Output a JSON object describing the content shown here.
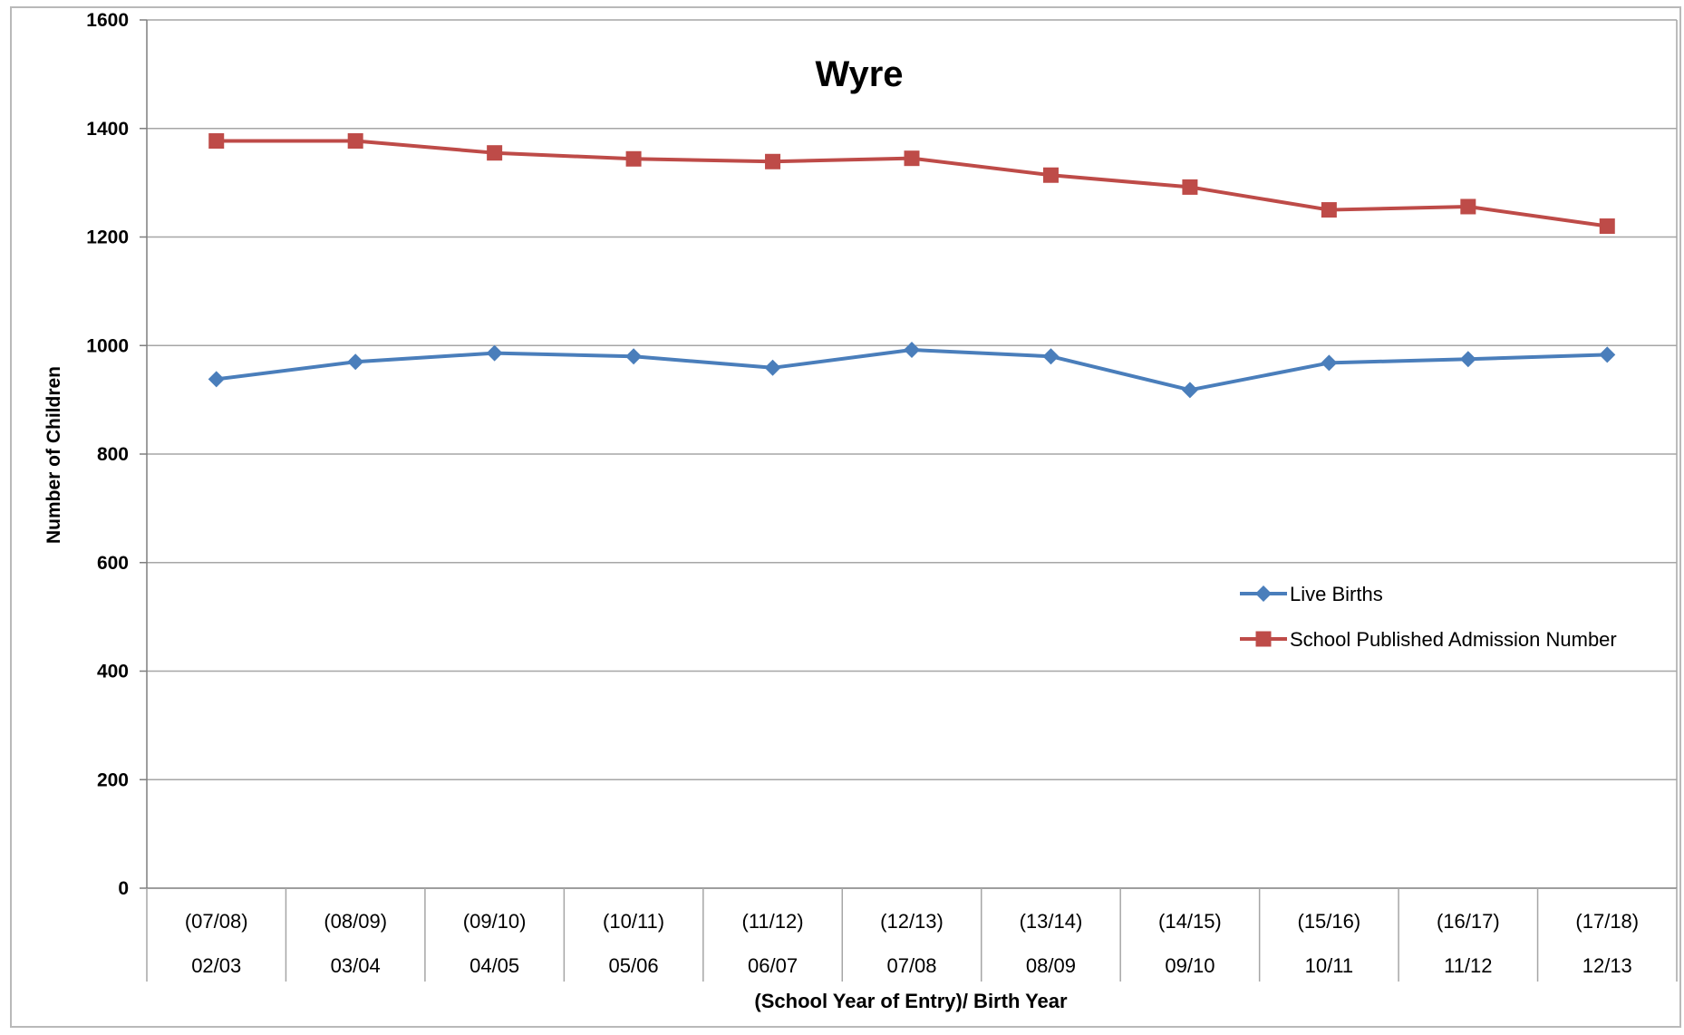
{
  "chart_data": {
    "type": "line",
    "title": "Wyre",
    "xlabel": "(School Year of Entry)/ Birth Year",
    "ylabel": "Number of Children",
    "ylim": [
      0,
      1600
    ],
    "yticks": [
      0,
      200,
      400,
      600,
      800,
      1000,
      1200,
      1400,
      1600
    ],
    "categories": [
      {
        "top": "(07/08)",
        "bottom": "02/03"
      },
      {
        "top": "(08/09)",
        "bottom": "03/04"
      },
      {
        "top": "(09/10)",
        "bottom": "04/05"
      },
      {
        "top": "(10/11)",
        "bottom": "05/06"
      },
      {
        "top": "(11/12)",
        "bottom": "06/07"
      },
      {
        "top": "(12/13)",
        "bottom": "07/08"
      },
      {
        "top": "(13/14)",
        "bottom": "08/09"
      },
      {
        "top": "(14/15)",
        "bottom": "09/10"
      },
      {
        "top": "(15/16)",
        "bottom": "10/11"
      },
      {
        "top": "(16/17)",
        "bottom": "11/12"
      },
      {
        "top": "(17/18)",
        "bottom": "12/13"
      }
    ],
    "series": [
      {
        "name": "Live Births",
        "color": "#4A7EBB",
        "marker": "diamond",
        "values": [
          938,
          970,
          986,
          980,
          959,
          992,
          980,
          918,
          968,
          975,
          983
        ]
      },
      {
        "name": "School Published Admission Number",
        "color": "#BE4B48",
        "marker": "square",
        "values": [
          1377,
          1377,
          1355,
          1344,
          1339,
          1345,
          1314,
          1292,
          1250,
          1256,
          1220
        ]
      }
    ],
    "grid": true,
    "legend": "right"
  }
}
